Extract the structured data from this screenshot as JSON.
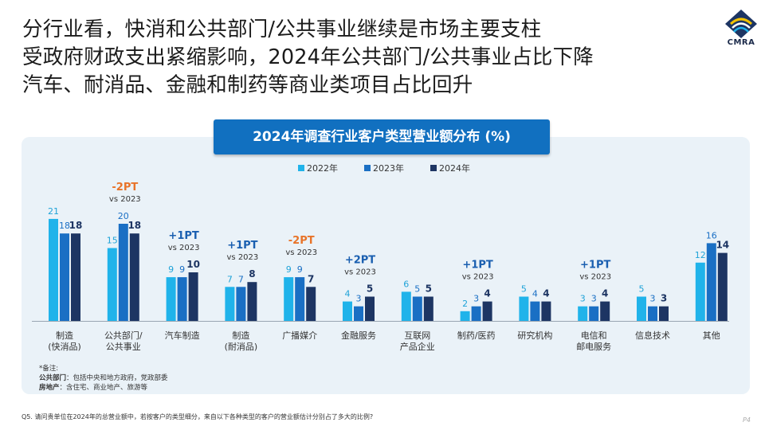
{
  "headline": {
    "line1": "分行业看，快消和公共部门/公共事业继续是市场主要支柱",
    "line2": "受政府财政支出紧缩影响，2024年公共部门/公共事业占比下降",
    "line3": "汽车、耐消品、金融和制药等商业类项目占比回升"
  },
  "logo": {
    "text": "CMRA",
    "icon": "cmra-logo-icon"
  },
  "colors": {
    "s2022": "#20b3ea",
    "s2023": "#1a6fc4",
    "s2024": "#1d3563",
    "up": "#1a5fb0",
    "down": "#e8742a",
    "panel": "#eaf2f8",
    "title_bg": "#1170c0"
  },
  "chart_data": {
    "type": "bar",
    "title": "2024年调查行业客户类型营业额分布 (%)",
    "categories": [
      [
        "制造",
        "(快消品)"
      ],
      [
        "公共部门/",
        "公共事业"
      ],
      [
        "汽车制造"
      ],
      [
        "制造",
        "(耐消品)"
      ],
      [
        "广播媒介"
      ],
      [
        "金融服务"
      ],
      [
        "互联网",
        "产品企业"
      ],
      [
        "制药/医药"
      ],
      [
        "研究机构"
      ],
      [
        "电信和",
        "邮电服务"
      ],
      [
        "信息技术"
      ],
      [
        "其他"
      ]
    ],
    "series": [
      {
        "name": "2022年",
        "values": [
          21,
          15,
          9,
          7,
          9,
          4,
          6,
          2,
          5,
          3,
          5,
          12
        ]
      },
      {
        "name": "2023年",
        "values": [
          18,
          20,
          9,
          7,
          9,
          3,
          5,
          3,
          4,
          3,
          3,
          16
        ]
      },
      {
        "name": "2024年",
        "values": [
          18,
          18,
          10,
          8,
          7,
          5,
          5,
          4,
          4,
          4,
          3,
          14
        ]
      }
    ],
    "annotations": [
      {
        "index": 1,
        "text": "-2PT",
        "sub": "vs 2023",
        "direction": "down"
      },
      {
        "index": 2,
        "text": "+1PT",
        "sub": "vs 2023",
        "direction": "up"
      },
      {
        "index": 3,
        "text": "+1PT",
        "sub": "vs 2023",
        "direction": "up"
      },
      {
        "index": 4,
        "text": "-2PT",
        "sub": "vs 2023",
        "direction": "down"
      },
      {
        "index": 5,
        "text": "+2PT",
        "sub": "vs 2023",
        "direction": "up"
      },
      {
        "index": 7,
        "text": "+1PT",
        "sub": "vs 2023",
        "direction": "up"
      },
      {
        "index": 9,
        "text": "+1PT",
        "sub": "vs 2023",
        "direction": "up"
      }
    ],
    "ylim": [
      0,
      21
    ],
    "legend_position": "top-center",
    "grid": false
  },
  "notes": {
    "title": "*备注:",
    "line1_label": "公共部门",
    "line1_text": "：包括中央和地方政府，党政部委",
    "line2_label": "房地产",
    "line2_text": "：含住宅、商业地产、旅游等"
  },
  "question": "Q5. 请问贵单位在2024年的总营业额中，若按客户的类型细分，来自以下各种类型的客户的营业额估计分别占了多大的比例?",
  "page": "P4"
}
